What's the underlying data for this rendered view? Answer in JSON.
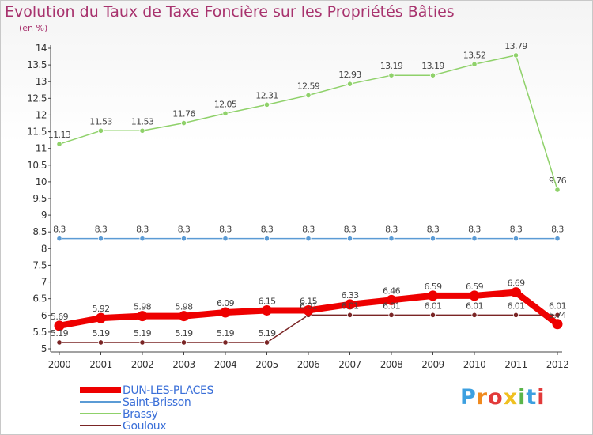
{
  "chart_data": {
    "type": "line",
    "title": "Evolution du Taux de Taxe Foncière sur les Propriétés Bâties",
    "unit_label": "(en %)",
    "x": [
      "2000",
      "2001",
      "2002",
      "2003",
      "2004",
      "2005",
      "2006",
      "2007",
      "2008",
      "2009",
      "2010",
      "2011",
      "2012"
    ],
    "y_ticks": [
      "5",
      "5.5",
      "6",
      "6.5",
      "7",
      "7.5",
      "8",
      "8.5",
      "9",
      "9.5",
      "10",
      "10.5",
      "11",
      "11.5",
      "12",
      "12.5",
      "13",
      "13.5",
      "14"
    ],
    "ylim": [
      5,
      14
    ],
    "series": [
      {
        "name": "DUN-LES-PLACES",
        "color": "#ee0000",
        "values": [
          5.69,
          5.92,
          5.98,
          5.98,
          6.09,
          6.15,
          6.15,
          6.33,
          6.46,
          6.59,
          6.59,
          6.69,
          5.74
        ],
        "labels": [
          "5.69",
          "5.92",
          "5.98",
          "5.98",
          "6.09",
          "6.15",
          "6.15",
          "6.33",
          "6.46",
          "6.59",
          "6.59",
          "6.69",
          "5.74"
        ]
      },
      {
        "name": "Saint-Brisson",
        "color": "#5b9bd5",
        "values": [
          8.3,
          8.3,
          8.3,
          8.3,
          8.3,
          8.3,
          8.3,
          8.3,
          8.3,
          8.3,
          8.3,
          8.3,
          8.3
        ],
        "labels": [
          "8.3",
          "8.3",
          "8.3",
          "8.3",
          "8.3",
          "8.3",
          "8.3",
          "8.3",
          "8.3",
          "8.3",
          "8.3",
          "8.3",
          "8.3"
        ]
      },
      {
        "name": "Brassy",
        "color": "#8fd16a",
        "values": [
          11.13,
          11.53,
          11.53,
          11.76,
          12.05,
          12.31,
          12.59,
          12.93,
          13.19,
          13.19,
          13.52,
          13.79,
          9.76
        ],
        "labels": [
          "11.13",
          "11.53",
          "11.53",
          "11.76",
          "12.05",
          "12.31",
          "12.59",
          "12.93",
          "13.19",
          "13.19",
          "13.52",
          "13.79",
          "9.76"
        ]
      },
      {
        "name": "Gouloux",
        "color": "#7a2525",
        "values": [
          5.19,
          5.19,
          5.19,
          5.19,
          5.19,
          5.19,
          6.01,
          6.01,
          6.01,
          6.01,
          6.01,
          6.01,
          6.01
        ],
        "labels": [
          "5.19",
          "5.19",
          "5.19",
          "5.19",
          "5.19",
          "5.19",
          "6.01",
          "6.01",
          "6.01",
          "6.01",
          "6.01",
          "6.01",
          "6.01"
        ]
      }
    ],
    "legend": [
      "DUN-LES-PLACES",
      "Saint-Brisson",
      "Brassy",
      "Gouloux"
    ],
    "legend_position": "bottom-left"
  },
  "logo": {
    "letters": [
      "P",
      "r",
      "o",
      "x",
      "i",
      "t",
      "i"
    ],
    "colors": [
      "#3da0e0",
      "#f08a1e",
      "#e23a3a",
      "#f0c020",
      "#5ab54a",
      "#3da0e0",
      "#e23a3a"
    ]
  }
}
